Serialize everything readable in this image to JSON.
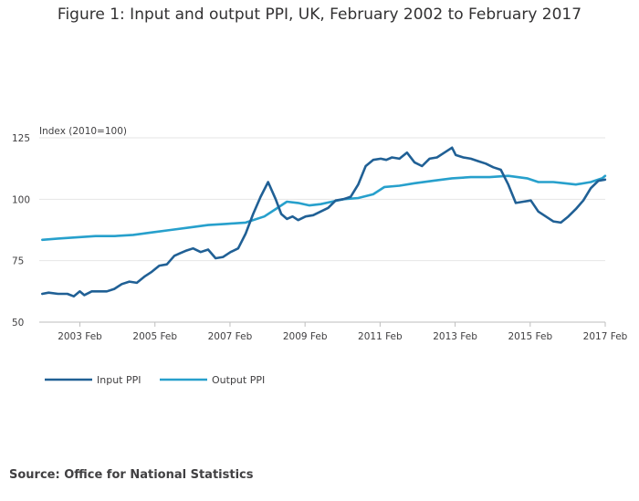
{
  "title": "Figure 1: Input and output PPI, UK, February 2002 to February 2017",
  "source": "Source: Office for National Statistics",
  "colors": {
    "input": "#206095",
    "output": "#27a0cc",
    "grid": "#e6e6e6",
    "axis": "#bebebe"
  },
  "chart_data": {
    "type": "line",
    "title": "Figure 1: Input and output PPI, UK, February 2002 to February 2017",
    "ylabel": "Index (2010=100)",
    "xlabel": "",
    "xlim": [
      2002.0,
      2017.0833
    ],
    "ylim": [
      50,
      125
    ],
    "yticks": [
      50,
      75,
      100,
      125
    ],
    "xticks": [
      {
        "label": "2003 Feb",
        "x": 2003.0833
      },
      {
        "label": "2005 Feb",
        "x": 2005.0833
      },
      {
        "label": "2007 Feb",
        "x": 2007.0833
      },
      {
        "label": "2009 Feb",
        "x": 2009.0833
      },
      {
        "label": "2011 Feb",
        "x": 2011.0833
      },
      {
        "label": "2013 Feb",
        "x": 2013.0833
      },
      {
        "label": "2015 Feb",
        "x": 2015.0833
      },
      {
        "label": "2017 Feb",
        "x": 2017.0833
      }
    ],
    "grid": true,
    "legend_position": "bottom-left",
    "series": [
      {
        "name": "Input PPI",
        "color": "#206095",
        "x": [
          2002.08,
          2002.25,
          2002.5,
          2002.75,
          2002.92,
          2003.08,
          2003.2,
          2003.4,
          2003.6,
          2003.8,
          2004.0,
          2004.2,
          2004.4,
          2004.6,
          2004.8,
          2005.0,
          2005.2,
          2005.4,
          2005.6,
          2005.75,
          2005.9,
          2006.1,
          2006.3,
          2006.5,
          2006.7,
          2006.9,
          2007.1,
          2007.3,
          2007.5,
          2007.7,
          2007.9,
          2008.1,
          2008.3,
          2008.45,
          2008.6,
          2008.75,
          2008.9,
          2009.1,
          2009.3,
          2009.5,
          2009.7,
          2009.9,
          2010.1,
          2010.3,
          2010.5,
          2010.7,
          2010.9,
          2011.1,
          2011.25,
          2011.4,
          2011.6,
          2011.8,
          2012.0,
          2012.2,
          2012.4,
          2012.6,
          2012.8,
          2013.0,
          2013.1,
          2013.3,
          2013.5,
          2013.7,
          2013.9,
          2014.1,
          2014.3,
          2014.5,
          2014.7,
          2014.9,
          2015.1,
          2015.3,
          2015.5,
          2015.7,
          2015.9,
          2016.1,
          2016.3,
          2016.5,
          2016.7,
          2016.9,
          2017.08
        ],
        "y": [
          61.5,
          62,
          61.5,
          61.5,
          60.5,
          62.5,
          61,
          62.5,
          62.5,
          62.5,
          63.5,
          65.5,
          66.5,
          66,
          68.5,
          70.5,
          73,
          73.5,
          77,
          78,
          79,
          80,
          78.5,
          79.5,
          76,
          76.5,
          78.5,
          80,
          86,
          94,
          101,
          107,
          100,
          94,
          92,
          93,
          91.5,
          93,
          93.5,
          95,
          96.5,
          99.5,
          100,
          101,
          106,
          113.5,
          116,
          116.5,
          116,
          117,
          116.5,
          119,
          115,
          113.5,
          116.5,
          117,
          119,
          121,
          118,
          117,
          116.5,
          115.5,
          114.5,
          113,
          112,
          106,
          98.5,
          99,
          99.5,
          95,
          93,
          91,
          90.5,
          93,
          96,
          99.5,
          104.5,
          107.5,
          108
        ]
      },
      {
        "name": "Output PPI",
        "color": "#27a0cc",
        "x": [
          2002.08,
          2002.5,
          2003.0,
          2003.5,
          2004.0,
          2004.5,
          2005.0,
          2005.5,
          2006.0,
          2006.5,
          2007.0,
          2007.5,
          2008.0,
          2008.3,
          2008.6,
          2008.9,
          2009.2,
          2009.5,
          2009.8,
          2010.1,
          2010.5,
          2010.9,
          2011.2,
          2011.6,
          2012.0,
          2012.5,
          2013.0,
          2013.5,
          2014.0,
          2014.5,
          2015.0,
          2015.3,
          2015.7,
          2016.0,
          2016.3,
          2016.7,
          2017.0,
          2017.08
        ],
        "y": [
          83.5,
          84,
          84.5,
          85,
          85,
          85.5,
          86.5,
          87.5,
          88.5,
          89.5,
          90,
          90.5,
          93,
          96,
          99,
          98.5,
          97.5,
          98,
          99,
          100,
          100.5,
          102,
          105,
          105.5,
          106.5,
          107.5,
          108.5,
          109,
          109,
          109.5,
          108.5,
          107,
          107,
          106.5,
          106,
          107,
          108.5,
          109.5
        ]
      }
    ]
  }
}
